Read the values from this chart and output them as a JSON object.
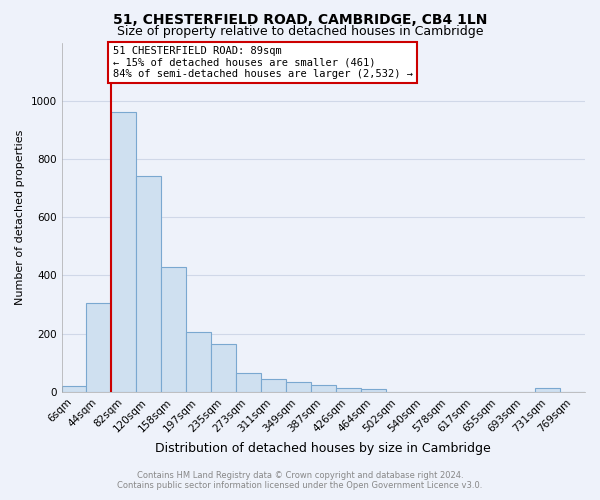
{
  "title": "51, CHESTERFIELD ROAD, CAMBRIDGE, CB4 1LN",
  "subtitle": "Size of property relative to detached houses in Cambridge",
  "xlabel": "Distribution of detached houses by size in Cambridge",
  "ylabel": "Number of detached properties",
  "categories": [
    "6sqm",
    "44sqm",
    "82sqm",
    "120sqm",
    "158sqm",
    "197sqm",
    "235sqm",
    "273sqm",
    "311sqm",
    "349sqm",
    "387sqm",
    "426sqm",
    "464sqm",
    "502sqm",
    "540sqm",
    "578sqm",
    "617sqm",
    "655sqm",
    "693sqm",
    "731sqm",
    "769sqm"
  ],
  "values": [
    20,
    305,
    960,
    740,
    430,
    205,
    165,
    65,
    45,
    35,
    25,
    15,
    10,
    0,
    0,
    0,
    0,
    0,
    0,
    12,
    0
  ],
  "bar_color": "#cfe0f0",
  "bar_edge_color": "#7aa8d0",
  "annotation_text": "51 CHESTERFIELD ROAD: 89sqm\n← 15% of detached houses are smaller (461)\n84% of semi-detached houses are larger (2,532) →",
  "annotation_box_color": "#ffffff",
  "annotation_box_edge": "#cc0000",
  "vline_color": "#cc0000",
  "vline_x_index": 2,
  "footer1": "Contains HM Land Registry data © Crown copyright and database right 2024.",
  "footer2": "Contains public sector information licensed under the Open Government Licence v3.0.",
  "ylim": [
    0,
    1200
  ],
  "yticks": [
    0,
    200,
    400,
    600,
    800,
    1000
  ],
  "background_color": "#eef2fa",
  "grid_color": "#d0d8e8",
  "title_fontsize": 10,
  "subtitle_fontsize": 9,
  "tick_fontsize": 7.5,
  "ylabel_fontsize": 8,
  "xlabel_fontsize": 9
}
